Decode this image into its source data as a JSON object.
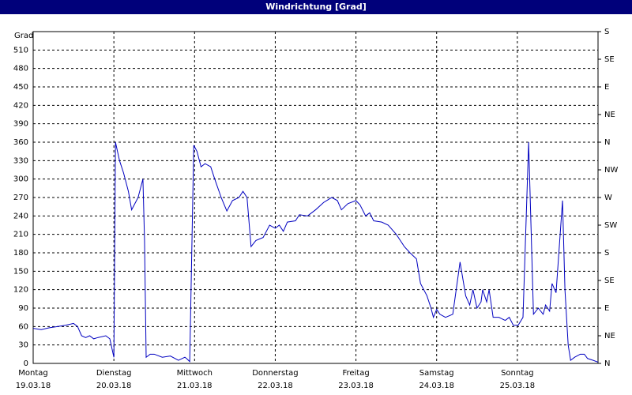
{
  "chart_data": {
    "type": "line",
    "title": "Windrichtung [Grad]",
    "y_label": "Grad",
    "xlim": [
      0,
      7
    ],
    "xticks": [
      {
        "value": 0,
        "label": "Montag",
        "sublabel": "19.03.18"
      },
      {
        "value": 1,
        "label": "Dienstag",
        "sublabel": "20.03.18"
      },
      {
        "value": 2,
        "label": "Mittwoch",
        "sublabel": "21.03.18"
      },
      {
        "value": 3,
        "label": "Donnerstag",
        "sublabel": "22.03.18"
      },
      {
        "value": 4,
        "label": "Freitag",
        "sublabel": "23.03.18"
      },
      {
        "value": 5,
        "label": "Samstag",
        "sublabel": "24.03.18"
      },
      {
        "value": 6,
        "label": "Sonntag",
        "sublabel": "25.03.18"
      }
    ],
    "ylim": [
      0,
      540
    ],
    "yticks": [
      0,
      30,
      60,
      90,
      120,
      150,
      180,
      210,
      240,
      270,
      300,
      330,
      360,
      390,
      420,
      450,
      480,
      510
    ],
    "y2lim": [
      0,
      540
    ],
    "y2ticks": [
      {
        "value": 0,
        "label": "N"
      },
      {
        "value": 45,
        "label": "NE"
      },
      {
        "value": 90,
        "label": "E"
      },
      {
        "value": 135,
        "label": "SE"
      },
      {
        "value": 180,
        "label": "S"
      },
      {
        "value": 225,
        "label": "SW"
      },
      {
        "value": 270,
        "label": "W"
      },
      {
        "value": 315,
        "label": "NW"
      },
      {
        "value": 360,
        "label": "N"
      },
      {
        "value": 405,
        "label": "NE"
      },
      {
        "value": 450,
        "label": "E"
      },
      {
        "value": 495,
        "label": "SE"
      },
      {
        "value": 540,
        "label": "S"
      }
    ],
    "grid": true,
    "series": [
      {
        "name": "Windrichtung",
        "color": "#0000c0",
        "x": [
          0,
          0.1,
          0.2,
          0.3,
          0.4,
          0.5,
          0.55,
          0.6,
          0.65,
          0.7,
          0.75,
          0.8,
          0.9,
          0.95,
          1.0,
          1.02,
          1.07,
          1.12,
          1.18,
          1.22,
          1.3,
          1.36,
          1.38,
          1.4,
          1.45,
          1.5,
          1.6,
          1.7,
          1.8,
          1.88,
          1.9,
          1.94,
          1.99,
          2.03,
          2.08,
          2.13,
          2.2,
          2.25,
          2.33,
          2.4,
          2.47,
          2.55,
          2.6,
          2.65,
          2.7,
          2.76,
          2.85,
          2.93,
          3.0,
          3.05,
          3.1,
          3.15,
          3.25,
          3.3,
          3.4,
          3.5,
          3.6,
          3.7,
          3.77,
          3.82,
          3.9,
          4.0,
          4.05,
          4.12,
          4.17,
          4.22,
          4.32,
          4.4,
          4.5,
          4.6,
          4.67,
          4.75,
          4.8,
          4.88,
          4.93,
          4.96,
          5.0,
          5.04,
          5.11,
          5.2,
          5.29,
          5.36,
          5.41,
          5.45,
          5.5,
          5.55,
          5.57,
          5.62,
          5.65,
          5.7,
          5.77,
          5.85,
          5.9,
          5.95,
          6.01,
          6.07,
          6.14,
          6.2,
          6.26,
          6.32,
          6.35,
          6.4,
          6.43,
          6.48,
          6.56,
          6.59,
          6.63,
          6.66,
          6.71,
          6.78,
          6.83,
          6.87,
          6.94,
          7.0
        ],
        "values": [
          57,
          55,
          58,
          60,
          62,
          65,
          60,
          45,
          42,
          45,
          40,
          42,
          45,
          40,
          10,
          360,
          330,
          310,
          280,
          250,
          270,
          300,
          200,
          10,
          15,
          15,
          10,
          12,
          5,
          10,
          8,
          3,
          355,
          345,
          320,
          325,
          320,
          300,
          270,
          248,
          265,
          270,
          280,
          270,
          190,
          200,
          205,
          225,
          220,
          225,
          215,
          230,
          232,
          242,
          240,
          250,
          262,
          270,
          265,
          250,
          260,
          265,
          258,
          240,
          245,
          232,
          230,
          225,
          210,
          190,
          180,
          170,
          130,
          110,
          90,
          75,
          88,
          80,
          75,
          80,
          165,
          110,
          95,
          120,
          90,
          100,
          120,
          100,
          120,
          75,
          75,
          70,
          75,
          62,
          62,
          75,
          360,
          80,
          90,
          80,
          95,
          85,
          130,
          115,
          265,
          120,
          30,
          5,
          10,
          15,
          15,
          8,
          5,
          2
        ]
      }
    ]
  }
}
